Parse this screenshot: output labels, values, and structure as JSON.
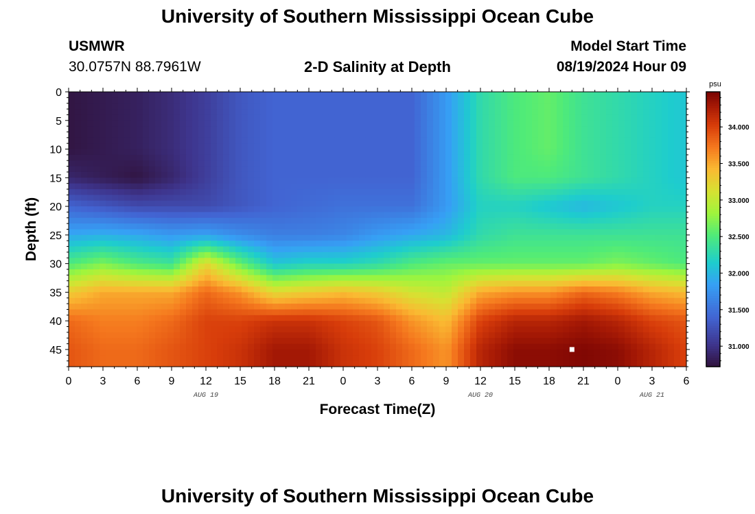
{
  "header": {
    "main_title": "University of Southern Mississippi Ocean Cube",
    "station": "USMWR",
    "coords": "30.0757N  88.7961W",
    "plot_title": "2-D Salinity at Depth",
    "model_label": "Model Start Time",
    "model_time": "08/19/2024 Hour 09"
  },
  "footer": {
    "title_repeat": "University of Southern Mississippi Ocean Cube"
  },
  "chart_data": {
    "type": "heatmap",
    "title": "2-D Salinity at Depth",
    "xlabel": "Forecast Time(Z)",
    "ylabel": "Depth (ft)",
    "x_tick_labels": [
      "0",
      "3",
      "6",
      "9",
      "12",
      "15",
      "18",
      "21",
      "0",
      "3",
      "6",
      "9",
      "12",
      "15",
      "18",
      "21",
      "0",
      "3",
      "6"
    ],
    "x_date_labels": [
      "AUG 19",
      "AUG 20",
      "AUG 21"
    ],
    "y_tick_labels": [
      "0",
      "5",
      "10",
      "15",
      "20",
      "25",
      "30",
      "35",
      "40",
      "45"
    ],
    "xlim_hours": [
      0,
      54
    ],
    "ylim": [
      0,
      48
    ],
    "y_inverted": true,
    "colorbar": {
      "unit": "psu",
      "tick_labels": [
        "31.000",
        "31.500",
        "32.000",
        "32.500",
        "33.000",
        "33.500",
        "34.000"
      ],
      "range": [
        30.72,
        34.48
      ]
    },
    "depths_ft": [
      0,
      5,
      10,
      15,
      20,
      25,
      30,
      35,
      40,
      45,
      48
    ],
    "hours": [
      0,
      3,
      6,
      9,
      12,
      15,
      18,
      21,
      24,
      27,
      30,
      33,
      36,
      39,
      42,
      45,
      48,
      51,
      54
    ],
    "salinity_psu": [
      [
        30.75,
        30.8,
        30.85,
        30.95,
        31.1,
        31.3,
        31.4,
        31.4,
        31.4,
        31.4,
        31.4,
        31.8,
        32.3,
        32.5,
        32.6,
        32.4,
        32.3,
        32.2,
        32.1
      ],
      [
        30.75,
        30.8,
        30.85,
        30.95,
        31.1,
        31.3,
        31.4,
        31.4,
        31.4,
        31.4,
        31.4,
        31.8,
        32.3,
        32.5,
        32.6,
        32.4,
        32.3,
        32.2,
        32.1
      ],
      [
        30.75,
        30.8,
        30.85,
        30.95,
        31.1,
        31.3,
        31.4,
        31.4,
        31.4,
        31.4,
        31.4,
        31.8,
        32.3,
        32.5,
        32.6,
        32.4,
        32.3,
        32.2,
        32.1
      ],
      [
        30.9,
        30.82,
        30.75,
        30.9,
        31.1,
        31.3,
        31.4,
        31.4,
        31.4,
        31.4,
        31.4,
        31.8,
        32.3,
        32.5,
        32.5,
        32.4,
        32.3,
        32.2,
        32.1
      ],
      [
        31.4,
        31.3,
        31.2,
        31.2,
        31.2,
        31.3,
        31.4,
        31.45,
        31.5,
        31.5,
        31.5,
        31.8,
        32.2,
        32.2,
        32.1,
        32.0,
        32.1,
        32.2,
        32.2
      ],
      [
        31.9,
        31.95,
        31.9,
        31.8,
        31.85,
        31.7,
        31.6,
        31.6,
        31.65,
        31.8,
        31.9,
        32.0,
        32.3,
        32.4,
        32.4,
        32.4,
        32.4,
        32.4,
        32.4
      ],
      [
        32.5,
        32.7,
        32.5,
        32.4,
        33.2,
        32.6,
        32.1,
        32.2,
        32.2,
        32.3,
        32.5,
        32.6,
        32.6,
        32.6,
        32.6,
        32.6,
        32.7,
        32.6,
        32.5
      ],
      [
        33.3,
        33.5,
        33.5,
        33.5,
        33.8,
        33.6,
        33.2,
        33.3,
        33.4,
        33.3,
        33.1,
        33.0,
        33.5,
        33.6,
        33.6,
        33.8,
        33.7,
        33.5,
        33.4
      ],
      [
        33.8,
        33.7,
        33.7,
        33.8,
        34.0,
        34.0,
        34.1,
        34.1,
        34.0,
        33.9,
        33.6,
        33.4,
        34.0,
        34.2,
        34.2,
        34.3,
        34.2,
        34.0,
        33.9
      ],
      [
        33.9,
        33.8,
        33.8,
        33.9,
        34.0,
        34.1,
        34.3,
        34.3,
        34.1,
        34.0,
        33.8,
        33.6,
        34.2,
        34.4,
        34.4,
        34.45,
        34.4,
        34.2,
        34.0
      ],
      [
        33.9,
        33.8,
        33.8,
        33.9,
        34.0,
        34.1,
        34.3,
        34.3,
        34.1,
        34.0,
        33.8,
        33.6,
        34.2,
        34.4,
        34.4,
        34.45,
        34.4,
        34.2,
        34.0
      ]
    ],
    "marker_point": {
      "hour": 44,
      "depth_ft": 45
    },
    "grid": false
  }
}
